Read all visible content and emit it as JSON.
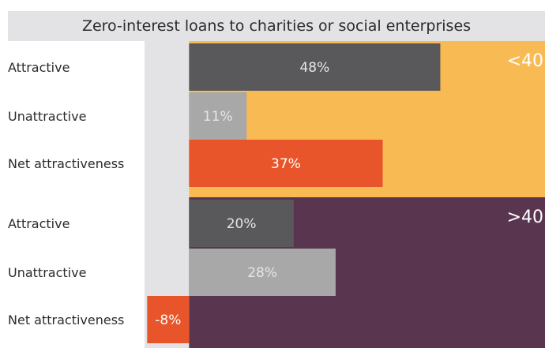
{
  "chart_data": {
    "type": "bar",
    "orientation": "horizontal",
    "title": "Zero-interest loans to charities or social enterprises",
    "unit": "%",
    "groups": [
      {
        "label": "<40",
        "background": "#f8bb54",
        "rows": [
          {
            "label": "Attractive",
            "value": 48,
            "display": "48%",
            "color": "#59585a",
            "text_color": "#e6e6e6"
          },
          {
            "label": "Unattractive",
            "value": 11,
            "display": "11%",
            "color": "#a8a8a9",
            "text_color": "#e6e6e6"
          },
          {
            "label": "Net attractiveness",
            "value": 37,
            "display": "37%",
            "color": "#e8552a",
            "text_color": "#ffffff"
          }
        ]
      },
      {
        "label": ">40",
        "background": "#5a3550",
        "rows": [
          {
            "label": "Attractive",
            "value": 20,
            "display": "20%",
            "color": "#59585a",
            "text_color": "#e6e6e6"
          },
          {
            "label": "Unattractive",
            "value": 28,
            "display": "28%",
            "color": "#a8a8a9",
            "text_color": "#e6e6e6"
          },
          {
            "label": "Net attractiveness",
            "value": -8,
            "display": "-8%",
            "color": "#e8552a",
            "text_color": "#ffffff"
          }
        ]
      }
    ],
    "xlim": [
      -8.5,
      68
    ],
    "negative_zone_color": "#e3e3e5"
  }
}
